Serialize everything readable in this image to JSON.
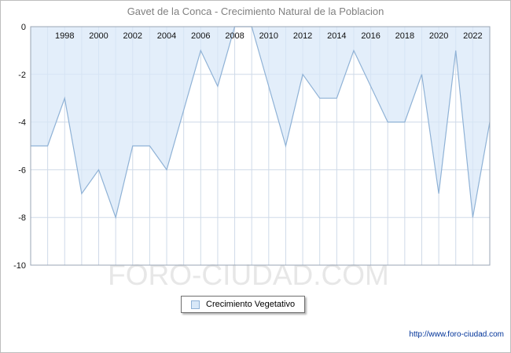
{
  "title": "Gavet de la Conca - Crecimiento Natural de la Poblacion",
  "watermark": "FORO-CIUDAD.COM",
  "legend": {
    "label": "Crecimiento Vegetativo"
  },
  "footer": {
    "url": "http://www.foro-ciudad.com"
  },
  "colors": {
    "area_fill": "#d8e8f8",
    "area_stroke": "#8fb2d6",
    "grid": "#cfdaе8",
    "grid_line": "#cfdae8",
    "plot_border": "#9aa5b4",
    "tick_text": "#111111",
    "title_text": "#808080",
    "watermark_text": "#e7e7e7",
    "url_text": "#003399"
  },
  "chart_data": {
    "type": "area",
    "title": "Gavet de la Conca - Crecimiento Natural de la Poblacion",
    "series_name": "Crecimiento Vegetativo",
    "x": [
      1996,
      1997,
      1998,
      1999,
      2000,
      2001,
      2002,
      2003,
      2004,
      2005,
      2006,
      2007,
      2008,
      2009,
      2010,
      2011,
      2012,
      2013,
      2014,
      2015,
      2016,
      2017,
      2018,
      2019,
      2020,
      2021,
      2022,
      2023
    ],
    "values": [
      -5,
      -5,
      -3,
      -7,
      -6,
      -8,
      -5,
      -5,
      -6,
      -3.5,
      -1,
      -2.5,
      0,
      0,
      -2.5,
      -5,
      -2,
      -3,
      -3,
      -1,
      -2.5,
      -4,
      -4,
      -2,
      -7,
      -1,
      -8,
      -4
    ],
    "ylim": [
      -10,
      0
    ],
    "yticks": [
      0,
      -2,
      -4,
      -6,
      -8,
      -10
    ],
    "xticks": [
      1998,
      2000,
      2002,
      2004,
      2006,
      2008,
      2010,
      2012,
      2014,
      2016,
      2018,
      2020,
      2022
    ],
    "baseline": 0,
    "grid": true,
    "legend_position": "bottom-center",
    "xlabel": "",
    "ylabel": ""
  }
}
